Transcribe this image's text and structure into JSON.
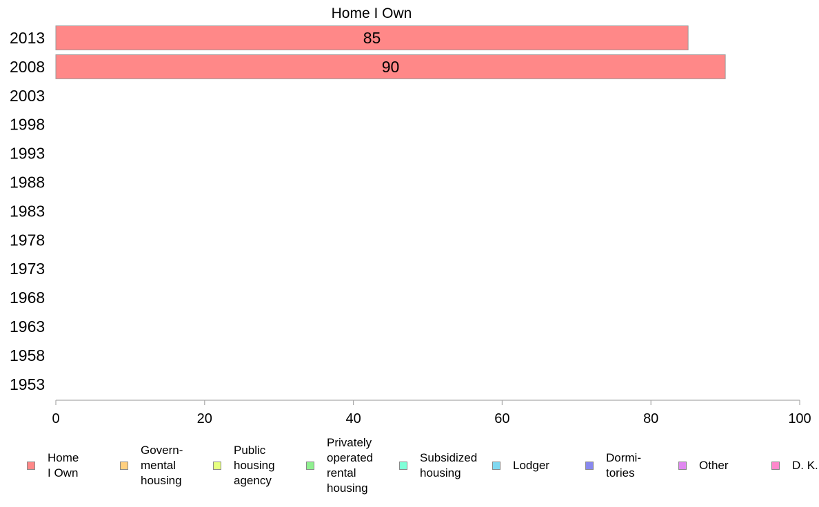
{
  "chart_data": {
    "type": "bar",
    "orientation": "horizontal",
    "title": "Home I Own",
    "categories": [
      "2013",
      "2008",
      "2003",
      "1998",
      "1993",
      "1988",
      "1983",
      "1978",
      "1973",
      "1968",
      "1963",
      "1958",
      "1953"
    ],
    "series": [
      {
        "name": "Home I Own",
        "color": "#ff8888",
        "values": [
          85,
          90,
          null,
          null,
          null,
          null,
          null,
          null,
          null,
          null,
          null,
          null,
          null
        ]
      }
    ],
    "data_labels": [
      "85",
      "90",
      "",
      "",
      "",
      "",
      "",
      "",
      "",
      "",
      "",
      "",
      ""
    ],
    "xlim": [
      0,
      100
    ],
    "xticks": [
      "0",
      "20",
      "40",
      "60",
      "80",
      "100"
    ],
    "xlabel": "",
    "ylabel": "",
    "grid": false,
    "legend": {
      "position": "bottom",
      "items": [
        {
          "label": "Home\nI Own",
          "color": "#ff8888"
        },
        {
          "label": "Govern-\nmental\n housing",
          "color": "#ffd080"
        },
        {
          "label": "Public\nhousing\nagency",
          "color": "#e6ff80"
        },
        {
          "label": "Privately\noperated\nrental\nhousing",
          "color": "#90f090"
        },
        {
          "label": "Subsidized\n housing",
          "color": "#80ffd8"
        },
        {
          "label": "Lodger",
          "color": "#80d8f0"
        },
        {
          "label": "Dormi-\ntories",
          "color": "#8888ee"
        },
        {
          "label": "Other",
          "color": "#e088f0"
        },
        {
          "label": "D. K.",
          "color": "#ff88cc"
        }
      ]
    }
  }
}
